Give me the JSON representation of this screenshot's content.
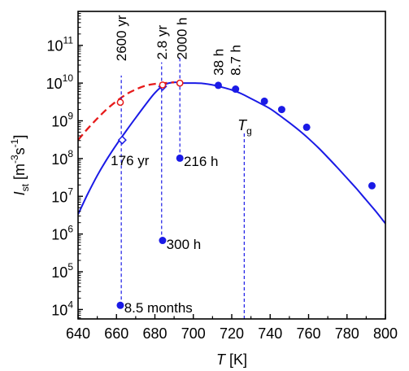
{
  "chart_data": {
    "type": "scatter",
    "xlabel": "T [K]",
    "ylabel": "I_st [m^-3 s^-1]",
    "xlim": [
      640,
      800
    ],
    "ylim_log10": [
      3.75,
      11.9
    ],
    "log_y": true,
    "grid": false,
    "x_ticks": [
      640,
      660,
      680,
      700,
      720,
      740,
      760,
      780,
      800
    ],
    "y_ticks_exp": [
      4,
      5,
      6,
      7,
      8,
      9,
      10,
      11
    ],
    "series": [
      {
        "kind": "solid-curve",
        "color": "#1a1ae6",
        "x": [
          640,
          645,
          650,
          655,
          660,
          665,
          670,
          675,
          680,
          685,
          690,
          695,
          700,
          705,
          710,
          715,
          720,
          725,
          730,
          735,
          740,
          745,
          750,
          755,
          760,
          765,
          770,
          775,
          780,
          785,
          790,
          795,
          800
        ],
        "log10_y": [
          6.52,
          7.06,
          7.55,
          7.98,
          8.37,
          8.73,
          9.08,
          9.42,
          9.74,
          9.96,
          10.02,
          10.0,
          10.0,
          9.99,
          9.95,
          9.89,
          9.82,
          9.72,
          9.59,
          9.46,
          9.32,
          9.14,
          8.95,
          8.75,
          8.53,
          8.29,
          8.03,
          7.76,
          7.48,
          7.2,
          6.9,
          6.6,
          6.28
        ]
      },
      {
        "kind": "dashed-curve",
        "color": "#e61a1a",
        "x": [
          640,
          645,
          650,
          655,
          660,
          665,
          670,
          675,
          680,
          685,
          690
        ],
        "log10_y": [
          8.49,
          8.79,
          9.06,
          9.31,
          9.52,
          9.7,
          9.83,
          9.93,
          9.98,
          10.0,
          10.02
        ]
      },
      {
        "kind": "solid-points",
        "color": "#1a1ae6",
        "x": [
          713,
          722,
          737,
          746,
          759,
          793
        ],
        "log10_y": [
          9.94,
          9.84,
          9.52,
          9.3,
          8.83,
          7.28
        ]
      },
      {
        "kind": "isolated-points",
        "color": "#1a1ae6",
        "x": [
          662,
          684,
          693
        ],
        "log10_y": [
          4.11,
          5.83,
          8.01
        ]
      },
      {
        "kind": "open-diamonds",
        "color": "#1a1ae6",
        "x": [
          663,
          684
        ],
        "log10_y": [
          8.49,
          9.91
        ]
      },
      {
        "kind": "open-circles",
        "color": "#e61a1a",
        "x": [
          662,
          684,
          693
        ],
        "log10_y": [
          9.49,
          9.95,
          10.0
        ]
      }
    ],
    "vlines": [
      {
        "x": 662.5,
        "from": 4.11,
        "to": 10.2
      },
      {
        "x": 683.5,
        "from": 5.83,
        "to": 10.55
      },
      {
        "x": 693,
        "from": 8.01,
        "to": 10.7
      },
      {
        "x": 726.5,
        "from": 3.75,
        "to": 8.7
      }
    ],
    "annotations": [
      {
        "text": "2600 yr",
        "x": 662.5,
        "ly": 10.58,
        "rotated": true
      },
      {
        "text": "2.8 yr",
        "x": 683.5,
        "ly": 10.62,
        "rotated": true
      },
      {
        "text": "2000 h",
        "x": 694,
        "ly": 10.62,
        "rotated": true
      },
      {
        "text": "38 h",
        "x": 713,
        "ly": 10.2,
        "rotated": true
      },
      {
        "text": "8.7 h",
        "x": 722,
        "ly": 10.2,
        "rotated": true
      },
      {
        "text": "176 yr",
        "x": 657,
        "ly": 7.95
      },
      {
        "text": "216 h",
        "x": 695,
        "ly": 7.93
      },
      {
        "text": "300 h",
        "x": 686,
        "ly": 5.73
      },
      {
        "text": "8.5 months",
        "x": 664,
        "ly": 4.05
      },
      {
        "text": "T_g",
        "x": 723,
        "ly": 8.75
      }
    ]
  }
}
